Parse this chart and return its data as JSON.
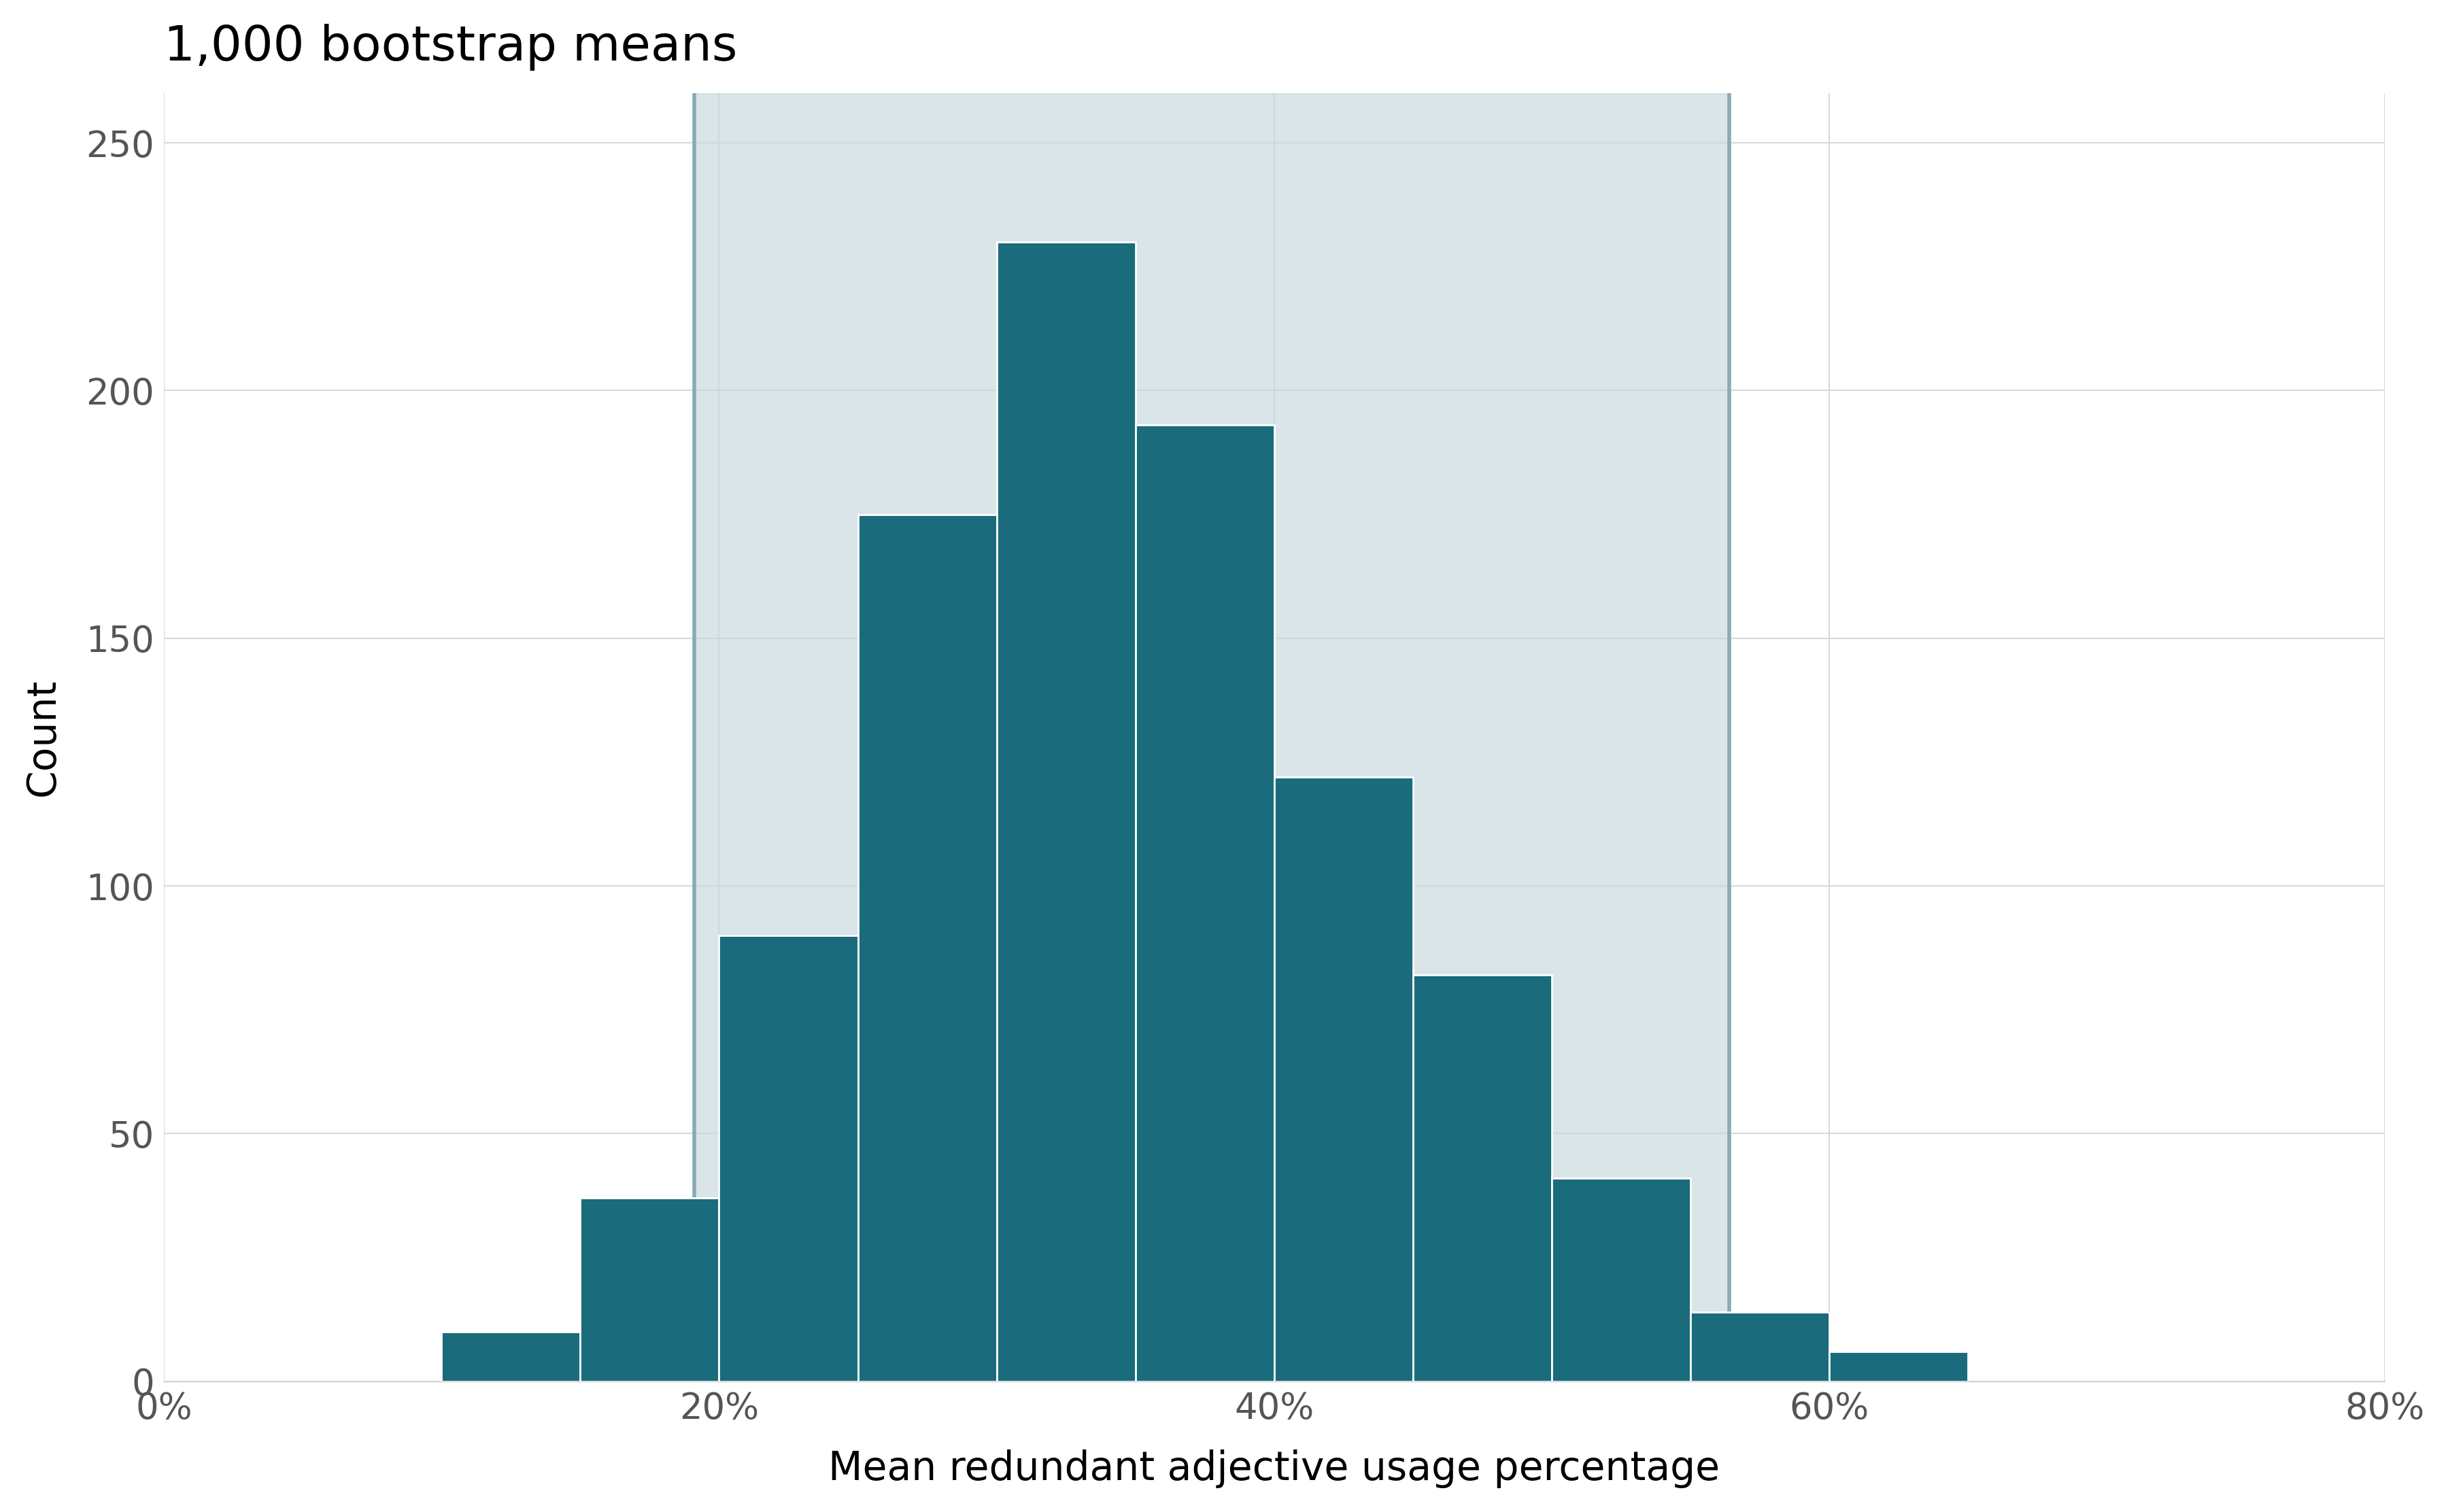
{
  "title": "1,000 bootstrap means",
  "xlabel": "Mean redundant adjective usage percentage",
  "ylabel": "Count",
  "bar_color": "#1a6b7c",
  "ci_fill_color": "#c5d8de",
  "ci_line_color": "#8aaab5",
  "background_color": "#ffffff",
  "grid_color": "#d9d9d9",
  "ci_low": 0.191,
  "ci_high": 0.564,
  "xlim": [
    0.0,
    0.8
  ],
  "ylim": [
    0,
    260
  ],
  "xticks": [
    0.0,
    0.2,
    0.4,
    0.6,
    0.8
  ],
  "xtick_labels": [
    "0%",
    "20%",
    "40%",
    "60%",
    "80%"
  ],
  "yticks": [
    0,
    50,
    100,
    150,
    200,
    250
  ],
  "bin_edges": [
    0.1,
    0.15,
    0.2,
    0.25,
    0.3,
    0.35,
    0.4,
    0.45,
    0.5,
    0.55,
    0.6,
    0.65,
    0.7
  ],
  "bar_heights": [
    10,
    37,
    90,
    175,
    230,
    193,
    122,
    82,
    41,
    14,
    6,
    0
  ],
  "title_fontsize": 52,
  "axis_label_fontsize": 42,
  "tick_fontsize": 38,
  "bar_edgecolor": "#ffffff",
  "bar_linewidth": 2.0,
  "tick_color": "#555555"
}
